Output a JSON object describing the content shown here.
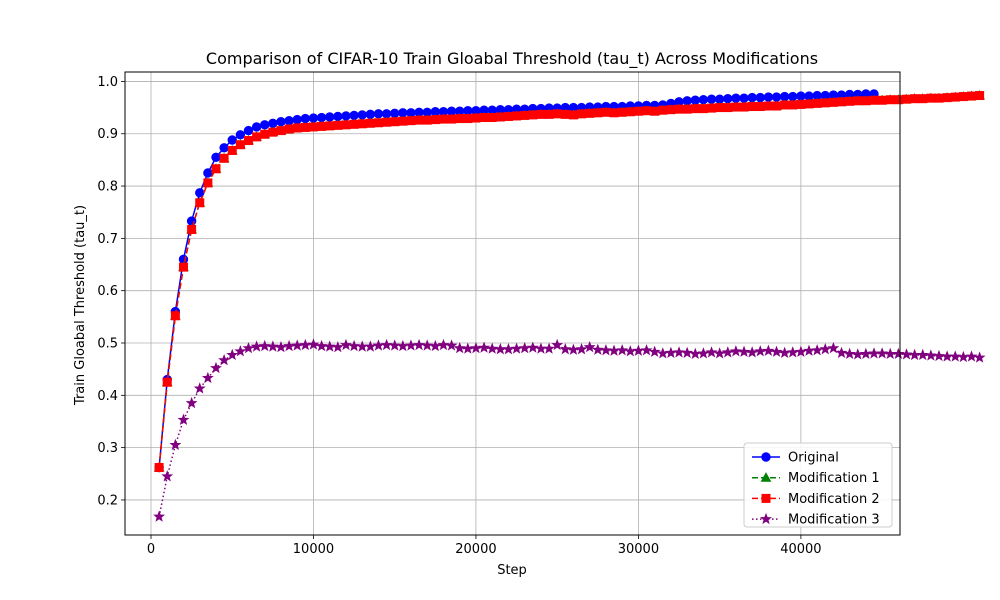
{
  "chart_data": {
    "type": "line",
    "title": "Comparison of CIFAR-10 Train Gloabal Threshold (tau_t) Across Modifications",
    "xlabel": "Step",
    "ylabel": "Train Gloabal Threshold (tau_t)",
    "xlim": [
      -1600,
      46100
    ],
    "ylim": [
      0.133,
      1.018
    ],
    "xticks": [
      0,
      10000,
      20000,
      30000,
      40000
    ],
    "xtick_labels": [
      "0",
      "10000",
      "20000",
      "30000",
      "40000"
    ],
    "yticks": [
      0.2,
      0.3,
      0.4,
      0.5,
      0.6,
      0.7,
      0.8,
      0.9,
      1.0
    ],
    "ytick_labels": [
      "0.2",
      "0.3",
      "0.4",
      "0.5",
      "0.6",
      "0.7",
      "0.8",
      "0.9",
      "1.0"
    ],
    "grid": true,
    "legend_position": "lower-right",
    "x_start": 500,
    "x_step": 500,
    "series": [
      {
        "name": "Original",
        "color": "#0000ff",
        "marker": "circle",
        "linestyle": "solid",
        "values": [
          0.262,
          0.43,
          0.56,
          0.66,
          0.733,
          0.787,
          0.825,
          0.855,
          0.873,
          0.888,
          0.898,
          0.906,
          0.913,
          0.917,
          0.92,
          0.923,
          0.925,
          0.927,
          0.929,
          0.93,
          0.931,
          0.932,
          0.933,
          0.934,
          0.935,
          0.936,
          0.937,
          0.938,
          0.938,
          0.939,
          0.94,
          0.94,
          0.941,
          0.941,
          0.942,
          0.942,
          0.943,
          0.943,
          0.944,
          0.944,
          0.945,
          0.945,
          0.946,
          0.946,
          0.947,
          0.947,
          0.948,
          0.948,
          0.949,
          0.949,
          0.95,
          0.95,
          0.95,
          0.951,
          0.951,
          0.952,
          0.952,
          0.952,
          0.953,
          0.953,
          0.954,
          0.954,
          0.955,
          0.958,
          0.961,
          0.963,
          0.964,
          0.965,
          0.966,
          0.966,
          0.967,
          0.968,
          0.968,
          0.969,
          0.969,
          0.97,
          0.97,
          0.971,
          0.971,
          0.972,
          0.972,
          0.973,
          0.973,
          0.974,
          0.974,
          0.975,
          0.975,
          0.976,
          0.976
        ]
      },
      {
        "name": "Modification 1",
        "color": "#008000",
        "marker": "triangle",
        "linestyle": "dashed",
        "values": [
          0.262,
          0.425,
          0.552,
          0.645,
          0.717,
          0.768,
          0.806,
          0.833,
          0.853,
          0.868,
          0.879,
          0.887,
          0.894,
          0.899,
          0.903,
          0.906,
          0.909,
          0.911,
          0.912,
          0.913,
          0.914,
          0.915,
          0.916,
          0.917,
          0.918,
          0.919,
          0.92,
          0.921,
          0.922,
          0.923,
          0.924,
          0.925,
          0.926,
          0.926,
          0.927,
          0.928,
          0.928,
          0.929,
          0.929,
          0.93,
          0.931,
          0.931,
          0.932,
          0.933,
          0.934,
          0.935,
          0.936,
          0.937,
          0.937,
          0.938,
          0.937,
          0.936,
          0.938,
          0.939,
          0.94,
          0.941,
          0.94,
          0.941,
          0.942,
          0.943,
          0.944,
          0.943,
          0.945,
          0.946,
          0.947,
          0.947,
          0.948,
          0.948,
          0.949,
          0.95,
          0.95,
          0.951,
          0.951,
          0.952,
          0.952,
          0.953,
          0.953,
          0.955,
          0.955,
          0.956,
          0.957,
          0.958,
          0.959,
          0.96,
          0.961,
          0.962,
          0.963,
          0.963,
          0.964,
          0.964,
          0.965,
          0.965,
          0.966,
          0.967,
          0.967,
          0.968,
          0.968,
          0.969,
          0.97,
          0.971,
          0.972,
          0.973
        ]
      },
      {
        "name": "Modification 2",
        "color": "#ff0000",
        "marker": "square",
        "linestyle": "dashed",
        "values": [
          0.262,
          0.425,
          0.552,
          0.645,
          0.717,
          0.768,
          0.806,
          0.833,
          0.853,
          0.868,
          0.879,
          0.887,
          0.894,
          0.899,
          0.903,
          0.906,
          0.909,
          0.911,
          0.912,
          0.913,
          0.914,
          0.915,
          0.916,
          0.917,
          0.918,
          0.919,
          0.92,
          0.921,
          0.922,
          0.923,
          0.924,
          0.925,
          0.926,
          0.926,
          0.927,
          0.928,
          0.928,
          0.929,
          0.929,
          0.93,
          0.931,
          0.931,
          0.932,
          0.933,
          0.934,
          0.935,
          0.936,
          0.937,
          0.937,
          0.938,
          0.937,
          0.936,
          0.938,
          0.939,
          0.94,
          0.941,
          0.94,
          0.941,
          0.942,
          0.943,
          0.944,
          0.943,
          0.945,
          0.946,
          0.947,
          0.947,
          0.948,
          0.948,
          0.949,
          0.95,
          0.95,
          0.951,
          0.951,
          0.952,
          0.952,
          0.953,
          0.953,
          0.955,
          0.955,
          0.956,
          0.957,
          0.958,
          0.959,
          0.96,
          0.961,
          0.962,
          0.963,
          0.963,
          0.964,
          0.964,
          0.965,
          0.965,
          0.966,
          0.967,
          0.967,
          0.968,
          0.968,
          0.969,
          0.97,
          0.971,
          0.972,
          0.973
        ]
      },
      {
        "name": "Modification 3",
        "color": "#800080",
        "marker": "star",
        "linestyle": "dotted",
        "values": [
          0.168,
          0.245,
          0.305,
          0.353,
          0.385,
          0.413,
          0.433,
          0.452,
          0.467,
          0.477,
          0.484,
          0.49,
          0.493,
          0.494,
          0.493,
          0.492,
          0.494,
          0.495,
          0.496,
          0.497,
          0.494,
          0.493,
          0.492,
          0.496,
          0.494,
          0.493,
          0.493,
          0.495,
          0.496,
          0.495,
          0.494,
          0.495,
          0.496,
          0.495,
          0.494,
          0.496,
          0.495,
          0.49,
          0.489,
          0.49,
          0.491,
          0.489,
          0.488,
          0.488,
          0.489,
          0.49,
          0.491,
          0.489,
          0.489,
          0.496,
          0.488,
          0.487,
          0.488,
          0.492,
          0.487,
          0.486,
          0.485,
          0.486,
          0.484,
          0.485,
          0.486,
          0.483,
          0.48,
          0.481,
          0.482,
          0.481,
          0.479,
          0.48,
          0.482,
          0.48,
          0.482,
          0.484,
          0.483,
          0.482,
          0.484,
          0.485,
          0.483,
          0.481,
          0.482,
          0.483,
          0.485,
          0.486,
          0.488,
          0.49,
          0.481,
          0.479,
          0.478,
          0.479,
          0.48,
          0.48,
          0.479,
          0.479,
          0.478,
          0.477,
          0.477,
          0.476,
          0.475,
          0.474,
          0.474,
          0.473,
          0.474,
          0.472
        ]
      }
    ]
  }
}
